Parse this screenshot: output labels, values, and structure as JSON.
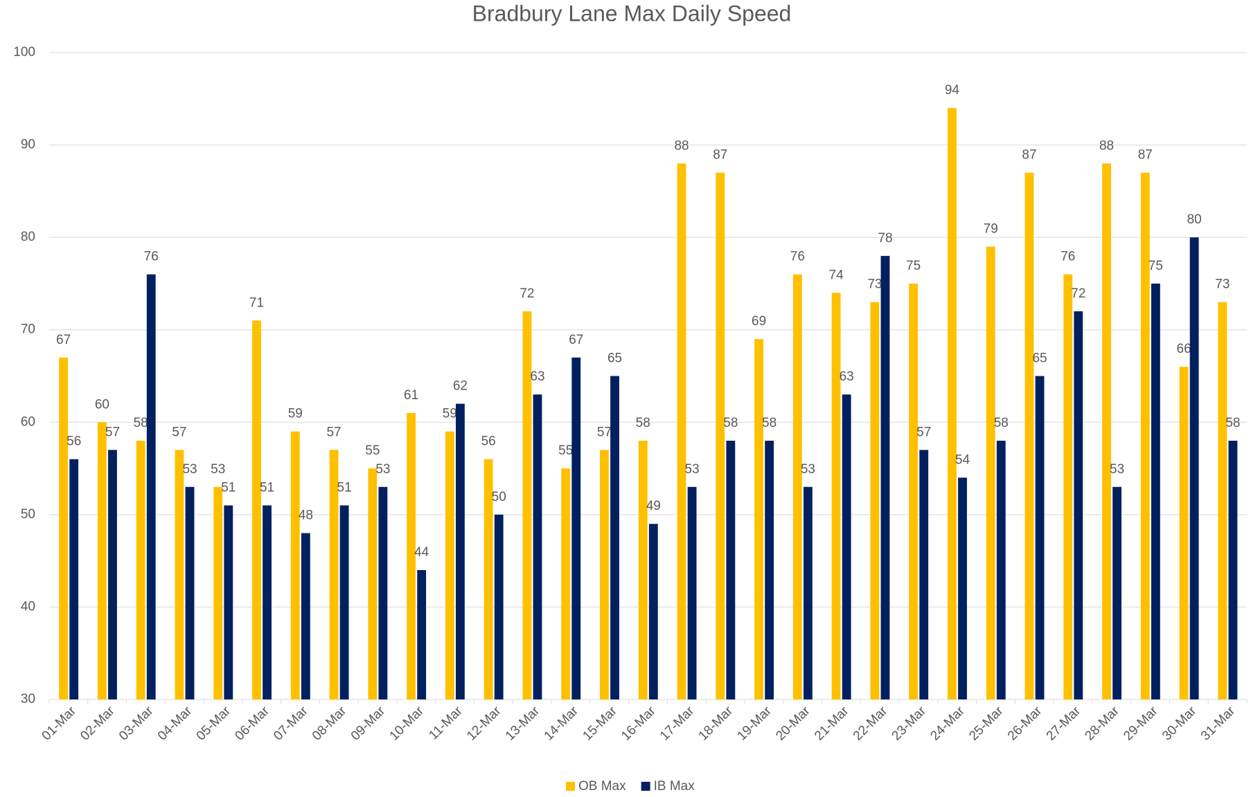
{
  "chart_data": {
    "type": "bar",
    "title": "Bradbury Lane Max Daily Speed",
    "categories": [
      "01-Mar",
      "02-Mar",
      "03-Mar",
      "04-Mar",
      "05-Mar",
      "06-Mar",
      "07-Mar",
      "08-Mar",
      "09-Mar",
      "10-Mar",
      "11-Mar",
      "12-Mar",
      "13-Mar",
      "14-Mar",
      "15-Mar",
      "16-Mar",
      "17-Mar",
      "18-Mar",
      "19-Mar",
      "20-Mar",
      "21-Mar",
      "22-Mar",
      "23-Mar",
      "24-Mar",
      "25-Mar",
      "26-Mar",
      "27-Mar",
      "28-Mar",
      "29-Mar",
      "30-Mar",
      "31-Mar"
    ],
    "series": [
      {
        "name": "OB Max",
        "color": "#FFC000",
        "values": [
          67,
          60,
          58,
          57,
          53,
          71,
          59,
          57,
          55,
          61,
          59,
          56,
          72,
          55,
          57,
          58,
          88,
          87,
          69,
          76,
          74,
          73,
          75,
          94,
          79,
          87,
          76,
          88,
          87,
          66,
          73
        ]
      },
      {
        "name": "IB Max",
        "color": "#002060",
        "values": [
          56,
          57,
          76,
          53,
          51,
          51,
          48,
          51,
          53,
          44,
          62,
          50,
          63,
          67,
          65,
          49,
          53,
          58,
          58,
          53,
          63,
          78,
          57,
          54,
          58,
          65,
          72,
          53,
          75,
          80,
          58
        ]
      }
    ],
    "ylim": [
      30,
      100
    ],
    "yticks": [
      30,
      40,
      50,
      60,
      70,
      80,
      90,
      100
    ],
    "grid": true,
    "legend": "bottom"
  }
}
